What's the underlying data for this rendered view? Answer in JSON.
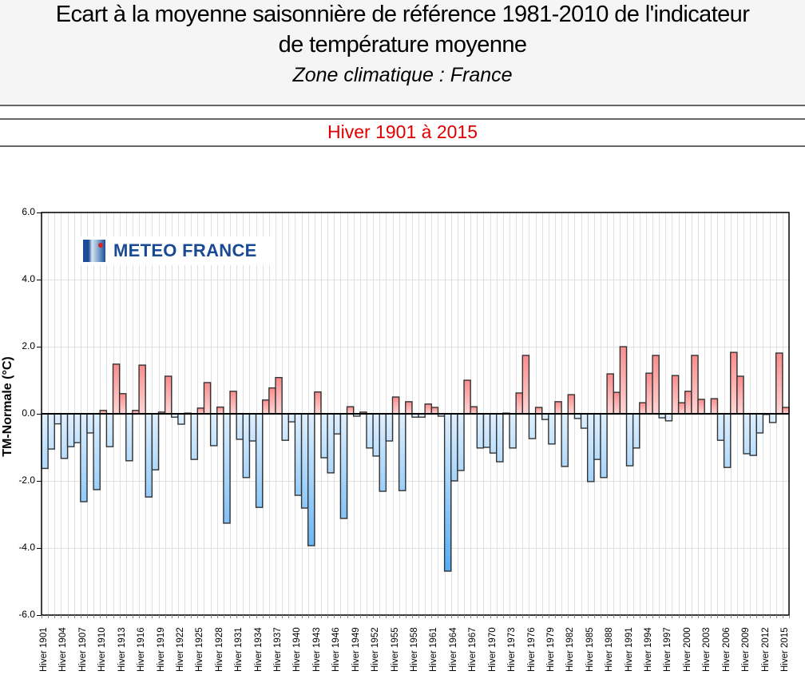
{
  "header": {
    "title_line1": "Ecart à la moyenne saisonnière de référence 1981-2010 de l'indicateur",
    "title_line2": "de température moyenne",
    "subtitle": "Zone climatique : France",
    "period": "Hiver 1901 à 2015"
  },
  "logo": {
    "text": "METEO FRANCE",
    "icon": "meteo-france-logo-icon"
  },
  "colors": {
    "positive_top": "#fb8c8c",
    "positive_bottom": "#ffd6d6",
    "negative_top": "#dff0ff",
    "negative_bottom": "#4aa8f5",
    "bar_border": "#333333",
    "grid": "#e0e0e0",
    "period_text": "#e00000",
    "logo_text": "#1a4a94"
  },
  "chart_data": {
    "type": "bar",
    "title": "Ecart à la moyenne saisonnière de référence 1981-2010 de l'indicateur de température moyenne",
    "subtitle": "Zone climatique : France — Hiver 1901 à 2015",
    "xlabel": "",
    "ylabel": "TM-Normale (°C)",
    "ylim": [
      -6.0,
      6.0
    ],
    "yticks": [
      "6.0",
      "4.0",
      "2.0",
      "0.0",
      "-2.0",
      "-4.0",
      "-6.0"
    ],
    "grid": true,
    "legend": null,
    "x_tick_labels": [
      "Hiver 1901",
      "Hiver 1904",
      "Hiver 1907",
      "Hiver 1910",
      "Hiver 1913",
      "Hiver 1916",
      "Hiver 1919",
      "Hiver 1922",
      "Hiver 1925",
      "Hiver 1928",
      "Hiver 1931",
      "Hiver 1934",
      "Hiver 1937",
      "Hiver 1940",
      "Hiver 1943",
      "Hiver 1946",
      "Hiver 1949",
      "Hiver 1952",
      "Hiver 1955",
      "Hiver 1958",
      "Hiver 1961",
      "Hiver 1964",
      "Hiver 1967",
      "Hiver 1970",
      "Hiver 1973",
      "Hiver 1976",
      "Hiver 1979",
      "Hiver 1982",
      "Hiver 1985",
      "Hiver 1988",
      "Hiver 1991",
      "Hiver 1994",
      "Hiver 1997",
      "Hiver 2000",
      "Hiver 2003",
      "Hiver 2006",
      "Hiver 2009",
      "Hiver 2012",
      "Hiver 2015"
    ],
    "x_start_year": 1901,
    "x_end_year": 2015,
    "values": [
      -1.63,
      -1.05,
      -0.3,
      -1.33,
      -0.98,
      -0.86,
      -2.62,
      -0.57,
      -2.26,
      0.1,
      -0.98,
      1.48,
      0.6,
      -1.4,
      0.1,
      1.45,
      -2.48,
      -1.67,
      0.05,
      1.12,
      -0.1,
      -0.31,
      0.02,
      -1.36,
      0.17,
      0.93,
      -0.95,
      0.2,
      -3.26,
      0.67,
      -0.76,
      -1.9,
      -0.81,
      -2.79,
      0.41,
      0.77,
      1.08,
      -0.79,
      -0.24,
      -2.43,
      -2.81,
      -3.93,
      0.65,
      -1.31,
      -1.76,
      -0.6,
      -3.12,
      0.21,
      -0.07,
      0.05,
      -1.02,
      -1.26,
      -2.31,
      -0.81,
      0.5,
      -2.29,
      0.36,
      -0.1,
      -0.1,
      0.29,
      0.19,
      -0.07,
      -4.69,
      -2.0,
      -1.69,
      1.0,
      0.21,
      -1.02,
      -1.0,
      -1.17,
      -1.43,
      0.02,
      -1.02,
      0.62,
      1.74,
      -0.74,
      0.19,
      -0.17,
      -0.9,
      0.36,
      -1.57,
      0.57,
      -0.14,
      -0.43,
      -2.02,
      -1.36,
      -1.9,
      1.19,
      0.64,
      2.0,
      -1.55,
      -1.02,
      0.33,
      1.21,
      1.74,
      -0.12,
      -0.21,
      1.14,
      0.33,
      0.67,
      1.74,
      0.43,
      0.0,
      0.45,
      -0.79,
      -1.6,
      1.83,
      1.12,
      -1.19,
      -1.24,
      -0.57,
      -0.02,
      -0.26,
      1.81,
      0.19
    ]
  }
}
